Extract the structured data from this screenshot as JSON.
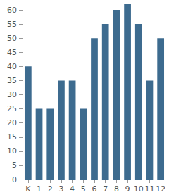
{
  "chart_data": {
    "type": "bar",
    "categories": [
      "K",
      "1",
      "2",
      "3",
      "4",
      "5",
      "6",
      "7",
      "8",
      "9",
      "10",
      "11",
      "12"
    ],
    "values": [
      40,
      25,
      25,
      35,
      35,
      25,
      50,
      55,
      60,
      62,
      55,
      35,
      50
    ],
    "color": "#3d6b8f",
    "ylim": [
      0,
      62
    ],
    "yticks": [
      0,
      5,
      10,
      15,
      20,
      25,
      30,
      35,
      40,
      45,
      50,
      55,
      60
    ],
    "grid": false
  }
}
